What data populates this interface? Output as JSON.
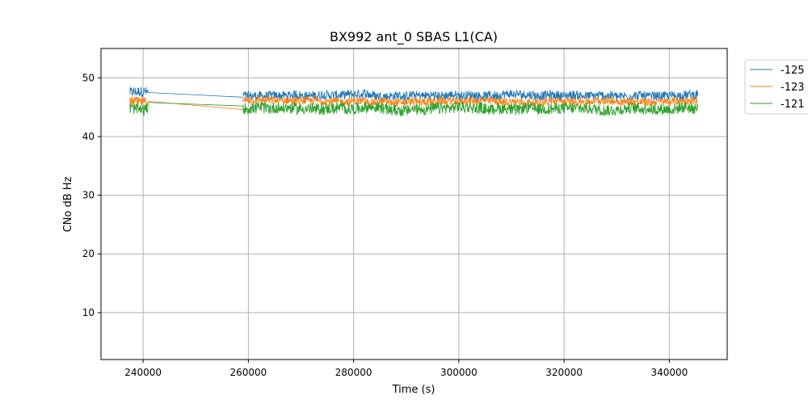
{
  "chart_data": {
    "type": "line",
    "title": "BX992 ant_0 SBAS L1(CA)",
    "xlabel": "Time (s)",
    "ylabel": "CNo dB Hz",
    "xlim": [
      232000,
      351000
    ],
    "ylim": [
      2,
      55
    ],
    "xticks": [
      240000,
      260000,
      280000,
      300000,
      320000,
      340000
    ],
    "yticks": [
      10,
      20,
      30,
      40,
      50
    ],
    "grid": true,
    "legend_position": "outside-right-top",
    "series": [
      {
        "name": "-125",
        "color": "#1f77b4",
        "segments": [
          {
            "x_start": 237500,
            "x_end": 241000,
            "mean": 47.5,
            "spread": 0.9
          },
          {
            "x_start": 259000,
            "x_end": 345500,
            "mean": 47.0,
            "spread": 0.8
          }
        ],
        "gap_line": [
          [
            241000,
            47.5
          ],
          [
            259000,
            46.7
          ]
        ]
      },
      {
        "name": "-123",
        "color": "#ff7f0e",
        "segments": [
          {
            "x_start": 237500,
            "x_end": 241000,
            "mean": 46.0,
            "spread": 0.8
          },
          {
            "x_start": 259000,
            "x_end": 345500,
            "mean": 46.0,
            "spread": 0.7
          }
        ],
        "gap_line": [
          [
            241000,
            46.0
          ],
          [
            259000,
            44.6
          ]
        ]
      },
      {
        "name": "-121",
        "color": "#2ca02c",
        "segments": [
          {
            "x_start": 237500,
            "x_end": 241000,
            "mean": 44.8,
            "spread": 1.0
          },
          {
            "x_start": 259000,
            "x_end": 345500,
            "mean": 44.8,
            "spread": 1.0
          }
        ],
        "gap_line": [
          [
            241000,
            45.8
          ],
          [
            259000,
            45.2
          ]
        ]
      }
    ]
  }
}
